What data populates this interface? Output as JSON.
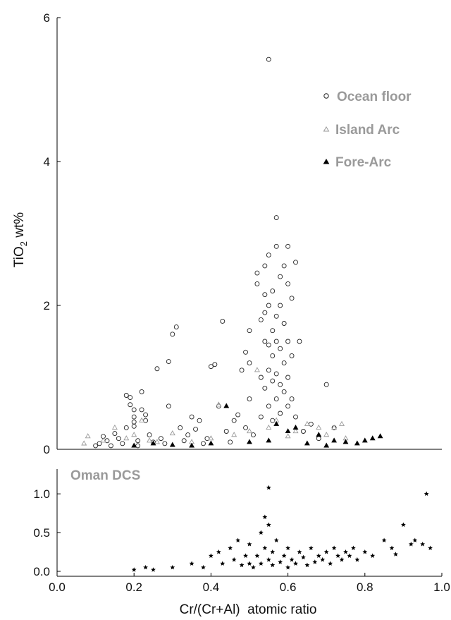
{
  "chart_data": [
    {
      "type": "scatter",
      "panel": "top",
      "title": "",
      "xlabel": "",
      "ylabel_base": "TiO",
      "ylabel_sub": "2",
      "ylabel_rest": " wt%",
      "xlim": [
        0.0,
        1.0
      ],
      "ylim": [
        0,
        6
      ],
      "y_ticks": [
        0,
        2,
        4,
        6
      ],
      "y_tick_labels": [
        "0",
        "2",
        "4",
        "6"
      ],
      "grid": false,
      "legend_position": "top-right",
      "series": [
        {
          "name": "Ocean floor",
          "marker": "open-circle",
          "color": "#222222",
          "points": [
            [
              0.1,
              0.05
            ],
            [
              0.11,
              0.08
            ],
            [
              0.12,
              0.18
            ],
            [
              0.13,
              0.12
            ],
            [
              0.14,
              0.05
            ],
            [
              0.15,
              0.22
            ],
            [
              0.16,
              0.15
            ],
            [
              0.17,
              0.08
            ],
            [
              0.18,
              0.3
            ],
            [
              0.18,
              0.75
            ],
            [
              0.19,
              0.72
            ],
            [
              0.19,
              0.62
            ],
            [
              0.2,
              0.55
            ],
            [
              0.2,
              0.45
            ],
            [
              0.2,
              0.38
            ],
            [
              0.2,
              0.32
            ],
            [
              0.21,
              0.12
            ],
            [
              0.21,
              0.05
            ],
            [
              0.22,
              0.8
            ],
            [
              0.22,
              0.55
            ],
            [
              0.23,
              0.48
            ],
            [
              0.23,
              0.4
            ],
            [
              0.24,
              0.2
            ],
            [
              0.25,
              0.1
            ],
            [
              0.26,
              1.12
            ],
            [
              0.27,
              0.15
            ],
            [
              0.28,
              0.08
            ],
            [
              0.29,
              1.22
            ],
            [
              0.29,
              0.6
            ],
            [
              0.3,
              1.6
            ],
            [
              0.31,
              1.7
            ],
            [
              0.32,
              0.3
            ],
            [
              0.33,
              0.12
            ],
            [
              0.34,
              0.2
            ],
            [
              0.35,
              0.45
            ],
            [
              0.36,
              0.28
            ],
            [
              0.37,
              0.4
            ],
            [
              0.38,
              0.08
            ],
            [
              0.39,
              0.15
            ],
            [
              0.4,
              1.15
            ],
            [
              0.41,
              1.18
            ],
            [
              0.42,
              0.6
            ],
            [
              0.43,
              1.78
            ],
            [
              0.44,
              0.25
            ],
            [
              0.45,
              0.1
            ],
            [
              0.46,
              0.4
            ],
            [
              0.47,
              0.48
            ],
            [
              0.48,
              1.1
            ],
            [
              0.49,
              1.35
            ],
            [
              0.49,
              0.3
            ],
            [
              0.5,
              1.65
            ],
            [
              0.5,
              1.2
            ],
            [
              0.5,
              0.7
            ],
            [
              0.51,
              0.2
            ],
            [
              0.52,
              2.45
            ],
            [
              0.52,
              2.3
            ],
            [
              0.53,
              1.8
            ],
            [
              0.53,
              1.0
            ],
            [
              0.53,
              0.45
            ],
            [
              0.54,
              2.55
            ],
            [
              0.54,
              2.15
            ],
            [
              0.54,
              1.9
            ],
            [
              0.54,
              1.5
            ],
            [
              0.54,
              0.85
            ],
            [
              0.55,
              5.42
            ],
            [
              0.55,
              2.7
            ],
            [
              0.55,
              2.0
            ],
            [
              0.55,
              1.45
            ],
            [
              0.55,
              1.1
            ],
            [
              0.55,
              0.6
            ],
            [
              0.56,
              2.2
            ],
            [
              0.56,
              1.65
            ],
            [
              0.56,
              1.3
            ],
            [
              0.56,
              0.95
            ],
            [
              0.56,
              0.4
            ],
            [
              0.57,
              3.22
            ],
            [
              0.57,
              2.82
            ],
            [
              0.57,
              1.85
            ],
            [
              0.57,
              1.5
            ],
            [
              0.57,
              1.05
            ],
            [
              0.57,
              0.7
            ],
            [
              0.58,
              2.4
            ],
            [
              0.58,
              2.0
            ],
            [
              0.58,
              1.4
            ],
            [
              0.58,
              0.9
            ],
            [
              0.58,
              0.5
            ],
            [
              0.59,
              2.55
            ],
            [
              0.59,
              1.75
            ],
            [
              0.59,
              1.2
            ],
            [
              0.59,
              0.8
            ],
            [
              0.6,
              2.82
            ],
            [
              0.6,
              2.3
            ],
            [
              0.6,
              1.5
            ],
            [
              0.6,
              1.0
            ],
            [
              0.6,
              0.6
            ],
            [
              0.61,
              2.1
            ],
            [
              0.61,
              1.3
            ],
            [
              0.61,
              0.7
            ],
            [
              0.62,
              2.6
            ],
            [
              0.62,
              0.45
            ],
            [
              0.63,
              1.5
            ],
            [
              0.64,
              0.25
            ],
            [
              0.66,
              0.35
            ],
            [
              0.68,
              0.15
            ],
            [
              0.7,
              0.9
            ],
            [
              0.72,
              0.3
            ]
          ]
        },
        {
          "name": "Island Arc",
          "marker": "open-triangle",
          "color": "#9a9a9a",
          "points": [
            [
              0.07,
              0.08
            ],
            [
              0.08,
              0.18
            ],
            [
              0.12,
              0.12
            ],
            [
              0.15,
              0.3
            ],
            [
              0.18,
              0.15
            ],
            [
              0.2,
              0.2
            ],
            [
              0.22,
              0.4
            ],
            [
              0.24,
              0.12
            ],
            [
              0.26,
              0.1
            ],
            [
              0.3,
              0.22
            ],
            [
              0.35,
              0.1
            ],
            [
              0.4,
              0.15
            ],
            [
              0.42,
              0.62
            ],
            [
              0.46,
              0.2
            ],
            [
              0.5,
              0.25
            ],
            [
              0.52,
              1.1
            ],
            [
              0.55,
              0.3
            ],
            [
              0.57,
              0.4
            ],
            [
              0.6,
              0.18
            ],
            [
              0.62,
              0.25
            ],
            [
              0.65,
              0.35
            ],
            [
              0.68,
              0.3
            ],
            [
              0.7,
              0.2
            ],
            [
              0.72,
              0.3
            ],
            [
              0.74,
              0.35
            ],
            [
              0.75,
              0.15
            ]
          ]
        },
        {
          "name": "Fore-Arc",
          "marker": "filled-triangle",
          "color": "#000000",
          "points": [
            [
              0.2,
              0.05
            ],
            [
              0.25,
              0.08
            ],
            [
              0.3,
              0.06
            ],
            [
              0.35,
              0.05
            ],
            [
              0.4,
              0.08
            ],
            [
              0.44,
              0.6
            ],
            [
              0.5,
              0.1
            ],
            [
              0.55,
              0.12
            ],
            [
              0.57,
              0.35
            ],
            [
              0.6,
              0.25
            ],
            [
              0.62,
              0.3
            ],
            [
              0.65,
              0.08
            ],
            [
              0.68,
              0.2
            ],
            [
              0.7,
              0.05
            ],
            [
              0.72,
              0.12
            ],
            [
              0.75,
              0.1
            ],
            [
              0.78,
              0.08
            ],
            [
              0.8,
              0.12
            ],
            [
              0.82,
              0.15
            ],
            [
              0.84,
              0.18
            ]
          ]
        }
      ]
    },
    {
      "type": "scatter",
      "panel": "bottom",
      "title": "",
      "panel_label": "Oman DCS",
      "xlabel": "Cr/(Cr+Al)  atomic ratio",
      "ylabel": "",
      "xlim": [
        0.0,
        1.0
      ],
      "ylim": [
        0.0,
        1.3
      ],
      "x_ticks": [
        0.0,
        0.2,
        0.4,
        0.6,
        0.8,
        1.0
      ],
      "x_tick_labels": [
        "0.0",
        "0.2",
        "0.4",
        "0.6",
        "0.8",
        "1.0"
      ],
      "y_ticks": [
        0.0,
        0.5,
        1.0
      ],
      "y_tick_labels": [
        "0.0",
        "0.5",
        "1.0"
      ],
      "grid": false,
      "series": [
        {
          "name": "Oman DCS",
          "marker": "filled-star",
          "color": "#000000",
          "points": [
            [
              0.2,
              0.02
            ],
            [
              0.23,
              0.05
            ],
            [
              0.25,
              0.02
            ],
            [
              0.3,
              0.05
            ],
            [
              0.35,
              0.1
            ],
            [
              0.38,
              0.05
            ],
            [
              0.4,
              0.2
            ],
            [
              0.42,
              0.25
            ],
            [
              0.43,
              0.1
            ],
            [
              0.45,
              0.3
            ],
            [
              0.46,
              0.15
            ],
            [
              0.47,
              0.4
            ],
            [
              0.48,
              0.08
            ],
            [
              0.49,
              0.2
            ],
            [
              0.5,
              0.35
            ],
            [
              0.5,
              0.1
            ],
            [
              0.51,
              0.05
            ],
            [
              0.52,
              0.2
            ],
            [
              0.53,
              0.5
            ],
            [
              0.53,
              0.1
            ],
            [
              0.54,
              0.7
            ],
            [
              0.54,
              0.3
            ],
            [
              0.55,
              1.08
            ],
            [
              0.55,
              0.6
            ],
            [
              0.55,
              0.15
            ],
            [
              0.56,
              0.25
            ],
            [
              0.56,
              0.08
            ],
            [
              0.57,
              0.4
            ],
            [
              0.58,
              0.12
            ],
            [
              0.59,
              0.2
            ],
            [
              0.6,
              0.3
            ],
            [
              0.6,
              0.05
            ],
            [
              0.61,
              0.15
            ],
            [
              0.62,
              0.1
            ],
            [
              0.63,
              0.25
            ],
            [
              0.64,
              0.18
            ],
            [
              0.65,
              0.08
            ],
            [
              0.66,
              0.3
            ],
            [
              0.67,
              0.12
            ],
            [
              0.68,
              0.2
            ],
            [
              0.69,
              0.15
            ],
            [
              0.7,
              0.25
            ],
            [
              0.71,
              0.1
            ],
            [
              0.72,
              0.3
            ],
            [
              0.73,
              0.2
            ],
            [
              0.74,
              0.15
            ],
            [
              0.75,
              0.25
            ],
            [
              0.76,
              0.2
            ],
            [
              0.77,
              0.3
            ],
            [
              0.78,
              0.15
            ],
            [
              0.8,
              0.25
            ],
            [
              0.82,
              0.2
            ],
            [
              0.85,
              0.4
            ],
            [
              0.87,
              0.3
            ],
            [
              0.88,
              0.22
            ],
            [
              0.9,
              0.6
            ],
            [
              0.92,
              0.35
            ],
            [
              0.93,
              0.4
            ],
            [
              0.95,
              0.35
            ],
            [
              0.96,
              1.0
            ],
            [
              0.97,
              0.3
            ]
          ]
        }
      ]
    }
  ]
}
